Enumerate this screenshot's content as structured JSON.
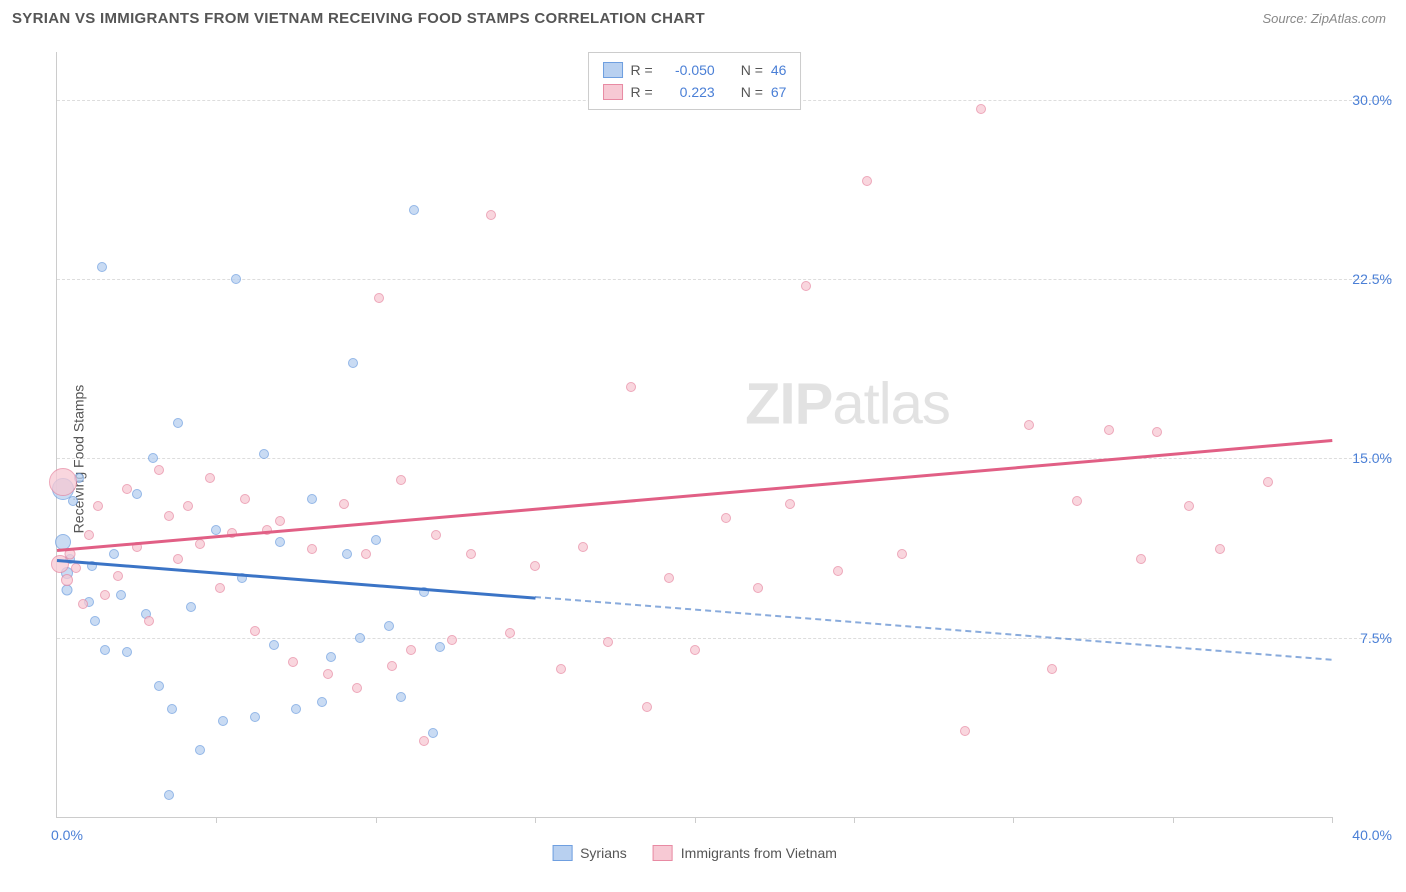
{
  "header": {
    "title": "SYRIAN VS IMMIGRANTS FROM VIETNAM RECEIVING FOOD STAMPS CORRELATION CHART",
    "source": "Source: ZipAtlas.com"
  },
  "ylabel": "Receiving Food Stamps",
  "watermark": {
    "zip": "ZIP",
    "atlas": "atlas"
  },
  "chart": {
    "type": "scatter",
    "xlim": [
      0,
      40
    ],
    "ylim": [
      0,
      32
    ],
    "xaxis": {
      "min_label": "0.0%",
      "max_label": "40.0%",
      "ticks_count": 8
    },
    "yaxis": {
      "gridlines": [
        7.5,
        15.0,
        22.5,
        30.0
      ],
      "labels": [
        "7.5%",
        "15.0%",
        "22.5%",
        "30.0%"
      ]
    },
    "series": [
      {
        "id": "syrians",
        "name": "Syrians",
        "fill": "#b8d0f0",
        "stroke": "#6f9fe0",
        "trend_color": "#3b74c6",
        "r_value": "-0.050",
        "n_value": "46",
        "trend": {
          "y0": 10.8,
          "slope": -0.105,
          "solid_to_x": 15,
          "end_x": 40
        },
        "points": [
          [
            0.2,
            11.5,
            16
          ],
          [
            0.2,
            13.7,
            22
          ],
          [
            0.3,
            10.2,
            12
          ],
          [
            0.3,
            9.5,
            11
          ],
          [
            0.4,
            10.8,
            10
          ],
          [
            0.5,
            13.2,
            10
          ],
          [
            0.7,
            14.2,
            10
          ],
          [
            1.0,
            9.0,
            10
          ],
          [
            1.1,
            10.5,
            10
          ],
          [
            1.2,
            8.2,
            10
          ],
          [
            1.4,
            23.0,
            10
          ],
          [
            1.5,
            7.0,
            10
          ],
          [
            1.8,
            11.0,
            10
          ],
          [
            2.0,
            9.3,
            10
          ],
          [
            2.2,
            6.9,
            10
          ],
          [
            2.5,
            13.5,
            10
          ],
          [
            2.8,
            8.5,
            10
          ],
          [
            3.0,
            15.0,
            10
          ],
          [
            3.2,
            5.5,
            10
          ],
          [
            3.5,
            0.9,
            10
          ],
          [
            3.6,
            4.5,
            10
          ],
          [
            3.8,
            16.5,
            10
          ],
          [
            4.2,
            8.8,
            10
          ],
          [
            4.5,
            2.8,
            10
          ],
          [
            5.0,
            12.0,
            10
          ],
          [
            5.2,
            4.0,
            10
          ],
          [
            5.6,
            22.5,
            10
          ],
          [
            5.8,
            10.0,
            10
          ],
          [
            6.2,
            4.2,
            10
          ],
          [
            6.5,
            15.2,
            10
          ],
          [
            6.8,
            7.2,
            10
          ],
          [
            7.0,
            11.5,
            10
          ],
          [
            7.5,
            4.5,
            10
          ],
          [
            8.0,
            13.3,
            10
          ],
          [
            8.3,
            4.8,
            10
          ],
          [
            8.6,
            6.7,
            10
          ],
          [
            9.1,
            11.0,
            10
          ],
          [
            9.3,
            19.0,
            10
          ],
          [
            9.5,
            7.5,
            10
          ],
          [
            10.0,
            11.6,
            10
          ],
          [
            10.4,
            8.0,
            10
          ],
          [
            10.8,
            5.0,
            10
          ],
          [
            11.2,
            25.4,
            10
          ],
          [
            11.5,
            9.4,
            10
          ],
          [
            11.8,
            3.5,
            10
          ],
          [
            12.0,
            7.1,
            10
          ]
        ]
      },
      {
        "id": "vietnam",
        "name": "Immigrants from Vietnam",
        "fill": "#f7c9d4",
        "stroke": "#e88aa3",
        "trend_color": "#e15f85",
        "r_value": "0.223",
        "n_value": "67",
        "trend": {
          "y0": 11.2,
          "slope": 0.115,
          "solid_to_x": 40,
          "end_x": 40
        },
        "points": [
          [
            0.1,
            10.6,
            18
          ],
          [
            0.2,
            14.0,
            28
          ],
          [
            0.3,
            9.9,
            12
          ],
          [
            0.4,
            11.0,
            11
          ],
          [
            0.6,
            10.4,
            10
          ],
          [
            0.8,
            8.9,
            10
          ],
          [
            1.0,
            11.8,
            10
          ],
          [
            1.3,
            13.0,
            10
          ],
          [
            1.5,
            9.3,
            10
          ],
          [
            1.9,
            10.1,
            10
          ],
          [
            2.2,
            13.7,
            10
          ],
          [
            2.5,
            11.3,
            10
          ],
          [
            2.9,
            8.2,
            10
          ],
          [
            3.2,
            14.5,
            10
          ],
          [
            3.5,
            12.6,
            10
          ],
          [
            3.8,
            10.8,
            10
          ],
          [
            4.1,
            13.0,
            10
          ],
          [
            4.5,
            11.4,
            10
          ],
          [
            4.8,
            14.2,
            10
          ],
          [
            5.1,
            9.6,
            10
          ],
          [
            5.5,
            11.9,
            10
          ],
          [
            5.9,
            13.3,
            10
          ],
          [
            6.2,
            7.8,
            10
          ],
          [
            6.6,
            12.0,
            10
          ],
          [
            7.0,
            12.4,
            10
          ],
          [
            7.4,
            6.5,
            10
          ],
          [
            8.0,
            11.2,
            10
          ],
          [
            8.5,
            6.0,
            10
          ],
          [
            9.0,
            13.1,
            10
          ],
          [
            9.4,
            5.4,
            10
          ],
          [
            9.7,
            11.0,
            10
          ],
          [
            10.1,
            21.7,
            10
          ],
          [
            10.5,
            6.3,
            10
          ],
          [
            10.8,
            14.1,
            10
          ],
          [
            11.1,
            7.0,
            10
          ],
          [
            11.5,
            3.2,
            10
          ],
          [
            11.9,
            11.8,
            10
          ],
          [
            12.4,
            7.4,
            10
          ],
          [
            13.0,
            11.0,
            10
          ],
          [
            13.6,
            25.2,
            10
          ],
          [
            14.2,
            7.7,
            10
          ],
          [
            15.0,
            10.5,
            10
          ],
          [
            15.8,
            6.2,
            10
          ],
          [
            16.5,
            11.3,
            10
          ],
          [
            17.3,
            7.3,
            10
          ],
          [
            18.0,
            18.0,
            10
          ],
          [
            18.5,
            4.6,
            10
          ],
          [
            19.2,
            10.0,
            10
          ],
          [
            20.0,
            7.0,
            10
          ],
          [
            21.0,
            12.5,
            10
          ],
          [
            22.0,
            9.6,
            10
          ],
          [
            23.0,
            13.1,
            10
          ],
          [
            23.5,
            22.2,
            10
          ],
          [
            24.5,
            10.3,
            10
          ],
          [
            25.4,
            26.6,
            10
          ],
          [
            26.5,
            11.0,
            10
          ],
          [
            28.5,
            3.6,
            10
          ],
          [
            29.0,
            29.6,
            10
          ],
          [
            30.5,
            16.4,
            10
          ],
          [
            31.2,
            6.2,
            10
          ],
          [
            32.0,
            13.2,
            10
          ],
          [
            33.0,
            16.2,
            10
          ],
          [
            34.0,
            10.8,
            10
          ],
          [
            34.5,
            16.1,
            10
          ],
          [
            35.5,
            13.0,
            10
          ],
          [
            36.5,
            11.2,
            10
          ],
          [
            38.0,
            14.0,
            10
          ]
        ]
      }
    ]
  },
  "legend": {
    "r_label": "R =",
    "n_label": "N ="
  }
}
